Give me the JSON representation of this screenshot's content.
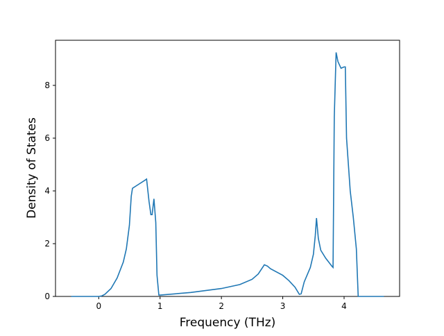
{
  "chart_data": {
    "type": "line",
    "x_label": "Frequency (THz)",
    "y_label": "Density of States",
    "x": [
      -0.45,
      0.0,
      0.05,
      0.1,
      0.2,
      0.3,
      0.4,
      0.45,
      0.5,
      0.53,
      0.55,
      0.65,
      0.75,
      0.78,
      0.82,
      0.85,
      0.87,
      0.9,
      0.93,
      0.95,
      0.98,
      1.0,
      1.5,
      2.0,
      2.3,
      2.5,
      2.6,
      2.7,
      2.75,
      2.8,
      3.0,
      3.1,
      3.2,
      3.27,
      3.3,
      3.35,
      3.45,
      3.5,
      3.53,
      3.55,
      3.58,
      3.62,
      3.7,
      3.8,
      3.82,
      3.84,
      3.87,
      3.9,
      3.95,
      4.0,
      4.02,
      4.04,
      4.1,
      4.15,
      4.2,
      4.23,
      4.65
    ],
    "series": [
      {
        "color": "#1f77b4",
        "values": [
          0,
          0,
          0.02,
          0.08,
          0.3,
          0.7,
          1.3,
          1.8,
          2.7,
          3.8,
          4.1,
          4.25,
          4.4,
          4.45,
          3.6,
          3.1,
          3.1,
          3.7,
          2.8,
          0.8,
          0.05,
          0.05,
          0.15,
          0.3,
          0.45,
          0.65,
          0.85,
          1.2,
          1.15,
          1.05,
          0.8,
          0.6,
          0.35,
          0.08,
          0.1,
          0.55,
          1.1,
          1.6,
          2.3,
          2.97,
          2.2,
          1.75,
          1.45,
          1.15,
          1.1,
          6.8,
          9.25,
          8.9,
          8.65,
          8.7,
          8.7,
          6.0,
          4.0,
          3.0,
          1.8,
          0,
          0
        ]
      }
    ],
    "xlim": [
      -0.705,
      4.905
    ],
    "ylim": [
      0,
      9.71
    ],
    "xticks": [
      0,
      1,
      2,
      3,
      4
    ],
    "yticks": [
      0,
      2,
      4,
      6,
      8
    ]
  }
}
